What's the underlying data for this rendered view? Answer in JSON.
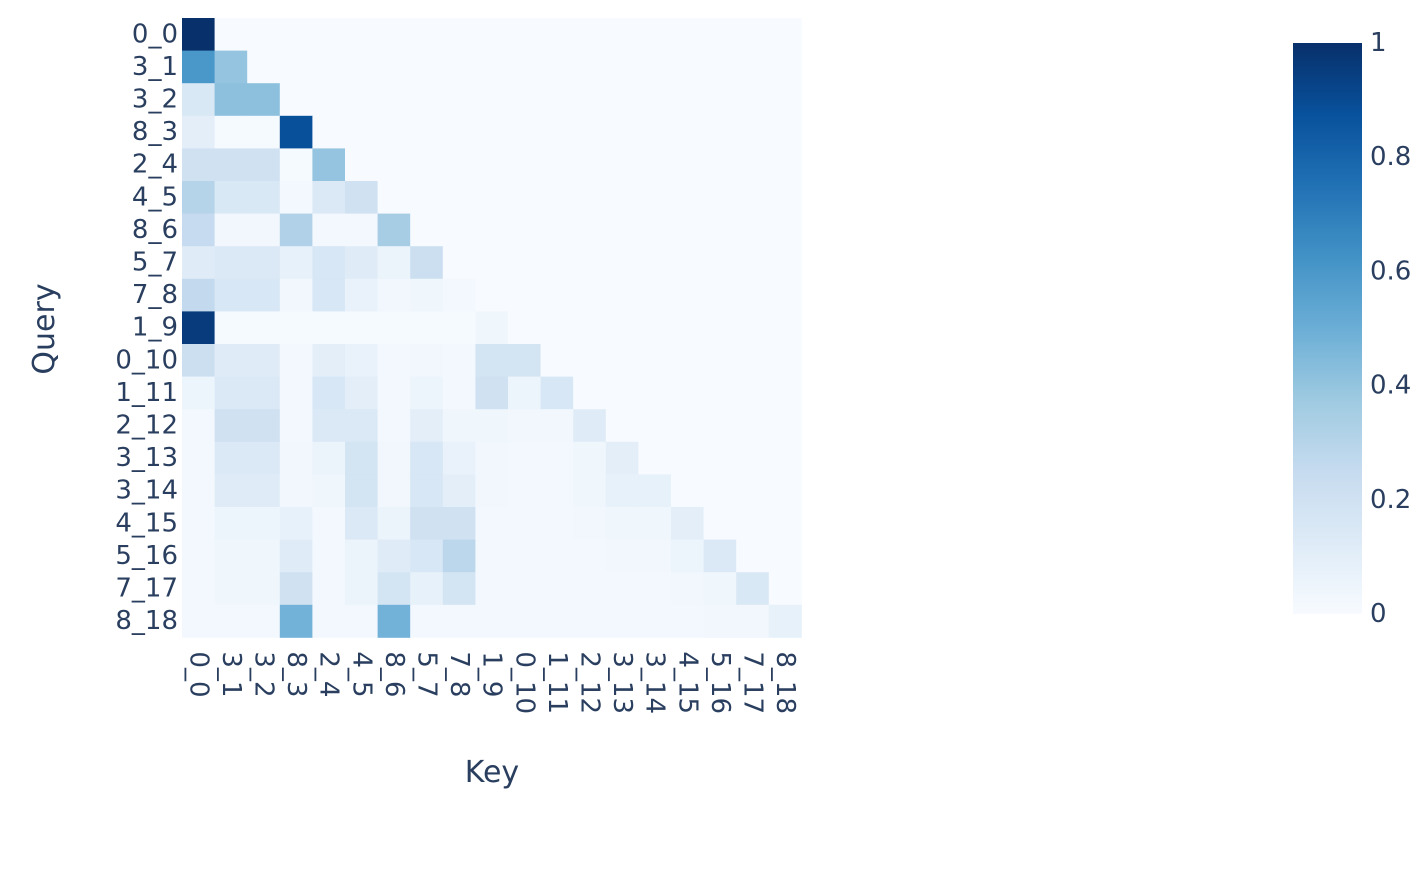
{
  "chart_data": {
    "type": "heatmap",
    "title": "",
    "xlabel": "Key",
    "ylabel": "Query",
    "x": [
      "0_0",
      "3_1",
      "3_2",
      "8_3",
      "2_4",
      "4_5",
      "8_6",
      "5_7",
      "7_8",
      "1_9",
      "0_10",
      "1_11",
      "2_12",
      "3_13",
      "3_14",
      "4_15",
      "5_16",
      "7_17",
      "8_18"
    ],
    "y": [
      "0_0",
      "3_1",
      "3_2",
      "8_3",
      "2_4",
      "4_5",
      "8_6",
      "5_7",
      "7_8",
      "1_9",
      "0_10",
      "1_11",
      "2_12",
      "3_13",
      "3_14",
      "4_15",
      "5_16",
      "7_17",
      "8_18"
    ],
    "z": [
      [
        1.0,
        0,
        0,
        0,
        0,
        0,
        0,
        0,
        0,
        0,
        0,
        0,
        0,
        0,
        0,
        0,
        0,
        0,
        0
      ],
      [
        0.6,
        0.4,
        0,
        0,
        0,
        0,
        0,
        0,
        0,
        0,
        0,
        0,
        0,
        0,
        0,
        0,
        0,
        0,
        0
      ],
      [
        0.15,
        0.42,
        0.42,
        0,
        0,
        0,
        0,
        0,
        0,
        0,
        0,
        0,
        0,
        0,
        0,
        0,
        0,
        0,
        0
      ],
      [
        0.1,
        0.01,
        0.01,
        0.88,
        0,
        0,
        0,
        0,
        0,
        0,
        0,
        0,
        0,
        0,
        0,
        0,
        0,
        0,
        0
      ],
      [
        0.2,
        0.2,
        0.2,
        0.01,
        0.4,
        0,
        0,
        0,
        0,
        0,
        0,
        0,
        0,
        0,
        0,
        0,
        0,
        0,
        0
      ],
      [
        0.3,
        0.15,
        0.15,
        0.02,
        0.14,
        0.2,
        0,
        0,
        0,
        0,
        0,
        0,
        0,
        0,
        0,
        0,
        0,
        0,
        0
      ],
      [
        0.25,
        0.03,
        0.03,
        0.32,
        0.02,
        0.02,
        0.35,
        0,
        0,
        0,
        0,
        0,
        0,
        0,
        0,
        0,
        0,
        0,
        0
      ],
      [
        0.12,
        0.14,
        0.14,
        0.08,
        0.16,
        0.12,
        0.06,
        0.22,
        0,
        0,
        0,
        0,
        0,
        0,
        0,
        0,
        0,
        0,
        0
      ],
      [
        0.26,
        0.16,
        0.16,
        0.03,
        0.16,
        0.07,
        0.03,
        0.04,
        0.02,
        0,
        0,
        0,
        0,
        0,
        0,
        0,
        0,
        0,
        0
      ],
      [
        0.96,
        0.01,
        0.01,
        0.01,
        0.01,
        0.01,
        0.01,
        0.01,
        0.01,
        0.04,
        0,
        0,
        0,
        0,
        0,
        0,
        0,
        0,
        0
      ],
      [
        0.22,
        0.12,
        0.12,
        0.02,
        0.1,
        0.07,
        0.02,
        0.03,
        0.02,
        0.18,
        0.18,
        0,
        0,
        0,
        0,
        0,
        0,
        0,
        0
      ],
      [
        0.05,
        0.14,
        0.14,
        0.02,
        0.16,
        0.1,
        0.02,
        0.05,
        0.02,
        0.2,
        0.05,
        0.16,
        0,
        0,
        0,
        0,
        0,
        0,
        0
      ],
      [
        0.02,
        0.2,
        0.2,
        0.02,
        0.14,
        0.14,
        0.02,
        0.1,
        0.04,
        0.04,
        0.03,
        0.03,
        0.12,
        0,
        0,
        0,
        0,
        0,
        0
      ],
      [
        0.02,
        0.14,
        0.14,
        0.03,
        0.06,
        0.18,
        0.03,
        0.16,
        0.07,
        0.03,
        0.02,
        0.02,
        0.04,
        0.1,
        0,
        0,
        0,
        0,
        0
      ],
      [
        0.02,
        0.12,
        0.12,
        0.03,
        0.04,
        0.18,
        0.03,
        0.16,
        0.1,
        0.03,
        0.02,
        0.02,
        0.04,
        0.08,
        0.08,
        0,
        0,
        0,
        0
      ],
      [
        0.02,
        0.05,
        0.05,
        0.08,
        0.02,
        0.14,
        0.06,
        0.2,
        0.2,
        0.02,
        0.02,
        0.02,
        0.03,
        0.04,
        0.04,
        0.1,
        0,
        0,
        0
      ],
      [
        0.02,
        0.04,
        0.04,
        0.12,
        0.02,
        0.06,
        0.12,
        0.16,
        0.28,
        0.02,
        0.02,
        0.02,
        0.02,
        0.03,
        0.03,
        0.05,
        0.14,
        0,
        0
      ],
      [
        0.02,
        0.04,
        0.04,
        0.2,
        0.02,
        0.06,
        0.18,
        0.08,
        0.18,
        0.02,
        0.02,
        0.02,
        0.02,
        0.02,
        0.02,
        0.03,
        0.04,
        0.15,
        0
      ],
      [
        0.02,
        0.02,
        0.02,
        0.48,
        0.02,
        0.02,
        0.48,
        0.02,
        0.02,
        0.02,
        0.02,
        0.02,
        0.02,
        0.02,
        0.02,
        0.02,
        0.03,
        0.03,
        0.08
      ]
    ],
    "zrange": [
      0,
      1
    ],
    "colorscale": "Blues",
    "colorbar": {
      "tickvals": [
        0,
        0.2,
        0.4,
        0.6,
        0.8,
        1
      ],
      "ticktext": [
        "0",
        "0.2",
        "0.4",
        "0.6",
        "0.8",
        "1"
      ]
    }
  }
}
